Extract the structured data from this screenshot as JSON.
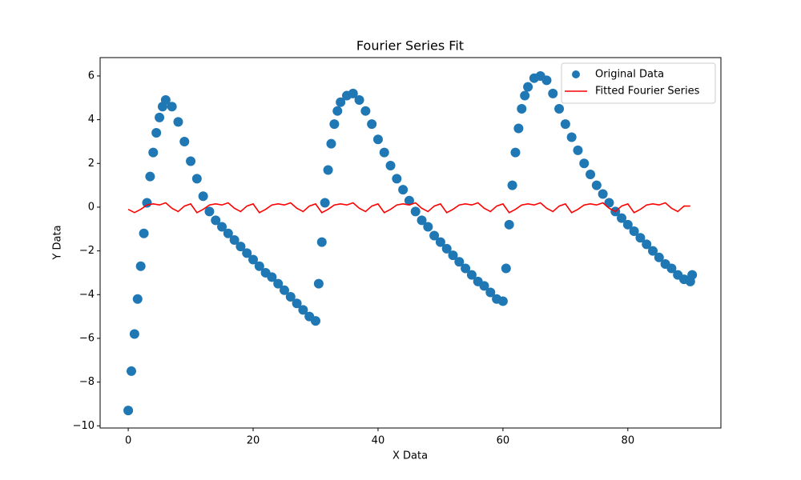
{
  "chart_data": {
    "type": "scatter",
    "title": "Fourier Series Fit",
    "x_label": "X Data",
    "y_label": "Y Data",
    "xlim": [
      -4.5,
      94.9
    ],
    "ylim": [
      -10.1,
      6.84
    ],
    "xticks": [
      0,
      20,
      40,
      60,
      80
    ],
    "yticks": [
      {
        "value": -10,
        "label": "−10"
      },
      {
        "value": -8,
        "label": "−8"
      },
      {
        "value": -6,
        "label": "−6"
      },
      {
        "value": -4,
        "label": "−4"
      },
      {
        "value": -2,
        "label": "−2"
      },
      0,
      2,
      4,
      6
    ],
    "grid": false,
    "legend": "upper right",
    "series": [
      {
        "name": "Original Data",
        "type": "scatter",
        "color": "#1f77b4",
        "x": [
          0,
          0.5,
          1,
          1.5,
          2,
          2.5,
          3,
          3.5,
          4,
          4.5,
          5,
          5.5,
          6,
          7,
          8,
          9,
          10,
          11,
          12,
          13,
          14,
          15,
          16,
          17,
          18,
          19,
          20,
          21,
          22,
          23,
          24,
          25,
          26,
          27,
          28,
          29,
          30,
          30.5,
          31,
          31.5,
          32,
          32.5,
          33,
          33.5,
          34,
          35,
          36,
          37,
          38,
          39,
          40,
          41,
          42,
          43,
          44,
          45,
          46,
          47,
          48,
          49,
          50,
          51,
          52,
          53,
          54,
          55,
          56,
          57,
          58,
          59,
          60,
          60.5,
          61,
          61.5,
          62,
          62.5,
          63,
          63.5,
          64,
          65,
          66,
          67,
          68,
          69,
          70,
          71,
          72,
          73,
          74,
          75,
          76,
          77,
          78,
          79,
          80,
          81,
          82,
          83,
          84,
          85,
          86,
          87,
          88,
          89,
          90,
          90.3
        ],
        "values": [
          -9.3,
          -7.5,
          -5.8,
          -4.2,
          -2.7,
          -1.2,
          0.2,
          1.4,
          2.5,
          3.4,
          4.1,
          4.6,
          4.9,
          4.6,
          3.9,
          3.0,
          2.1,
          1.3,
          0.5,
          -0.2,
          -0.6,
          -0.9,
          -1.2,
          -1.5,
          -1.8,
          -2.1,
          -2.4,
          -2.7,
          -3.0,
          -3.2,
          -3.5,
          -3.8,
          -4.1,
          -4.4,
          -4.7,
          -5.0,
          -5.2,
          -3.5,
          -1.6,
          0.2,
          1.7,
          2.9,
          3.8,
          4.4,
          4.8,
          5.1,
          5.2,
          4.9,
          4.4,
          3.8,
          3.1,
          2.5,
          1.9,
          1.3,
          0.8,
          0.3,
          -0.2,
          -0.6,
          -0.9,
          -1.3,
          -1.6,
          -1.9,
          -2.2,
          -2.5,
          -2.8,
          -3.1,
          -3.4,
          -3.6,
          -3.9,
          -4.2,
          -4.3,
          -2.8,
          -0.8,
          1.0,
          2.5,
          3.6,
          4.5,
          5.1,
          5.5,
          5.9,
          6.0,
          5.8,
          5.2,
          4.5,
          3.8,
          3.2,
          2.6,
          2.0,
          1.5,
          1.0,
          0.6,
          0.2,
          -0.2,
          -0.5,
          -0.8,
          -1.1,
          -1.4,
          -1.7,
          -2.0,
          -2.3,
          -2.6,
          -2.8,
          -3.1,
          -3.3,
          -3.4,
          -3.1
        ]
      },
      {
        "name": "Fitted Fourier Series",
        "type": "line",
        "color": "#ff0000",
        "x": [
          0,
          1,
          2,
          3,
          4,
          5,
          6,
          7,
          8,
          9,
          10,
          11,
          12,
          13,
          14,
          15,
          16,
          17,
          18,
          19,
          20,
          21,
          22,
          23,
          24,
          25,
          26,
          27,
          28,
          29,
          30,
          31,
          32,
          33,
          34,
          35,
          36,
          37,
          38,
          39,
          40,
          41,
          42,
          43,
          44,
          45,
          46,
          47,
          48,
          49,
          50,
          51,
          52,
          53,
          54,
          55,
          56,
          57,
          58,
          59,
          60,
          61,
          62,
          63,
          64,
          65,
          66,
          67,
          68,
          69,
          70,
          71,
          72,
          73,
          74,
          75,
          76,
          77,
          78,
          79,
          80,
          81,
          82,
          83,
          84,
          85,
          86,
          87,
          88,
          89,
          90
        ],
        "values": [
          -0.1,
          -0.25,
          -0.1,
          0.1,
          0.15,
          0.1,
          0.2,
          -0.05,
          -0.2,
          0.05,
          0.15,
          -0.25,
          -0.1,
          0.1,
          0.15,
          0.1,
          0.2,
          -0.05,
          -0.2,
          0.05,
          0.15,
          -0.25,
          -0.1,
          0.1,
          0.15,
          0.1,
          0.2,
          -0.05,
          -0.2,
          0.05,
          0.15,
          -0.25,
          -0.1,
          0.1,
          0.15,
          0.1,
          0.2,
          -0.05,
          -0.2,
          0.05,
          0.15,
          -0.25,
          -0.1,
          0.1,
          0.15,
          0.1,
          0.2,
          -0.05,
          -0.2,
          0.05,
          0.15,
          -0.25,
          -0.1,
          0.1,
          0.15,
          0.1,
          0.2,
          -0.05,
          -0.2,
          0.05,
          0.15,
          -0.25,
          -0.1,
          0.1,
          0.15,
          0.1,
          0.2,
          -0.05,
          -0.2,
          0.05,
          0.15,
          -0.25,
          -0.1,
          0.1,
          0.15,
          0.1,
          0.2,
          -0.05,
          -0.2,
          0.05,
          0.15,
          -0.25,
          -0.1,
          0.1,
          0.15,
          0.1,
          0.2,
          -0.05,
          -0.2,
          0.05,
          0.05
        ]
      }
    ]
  }
}
